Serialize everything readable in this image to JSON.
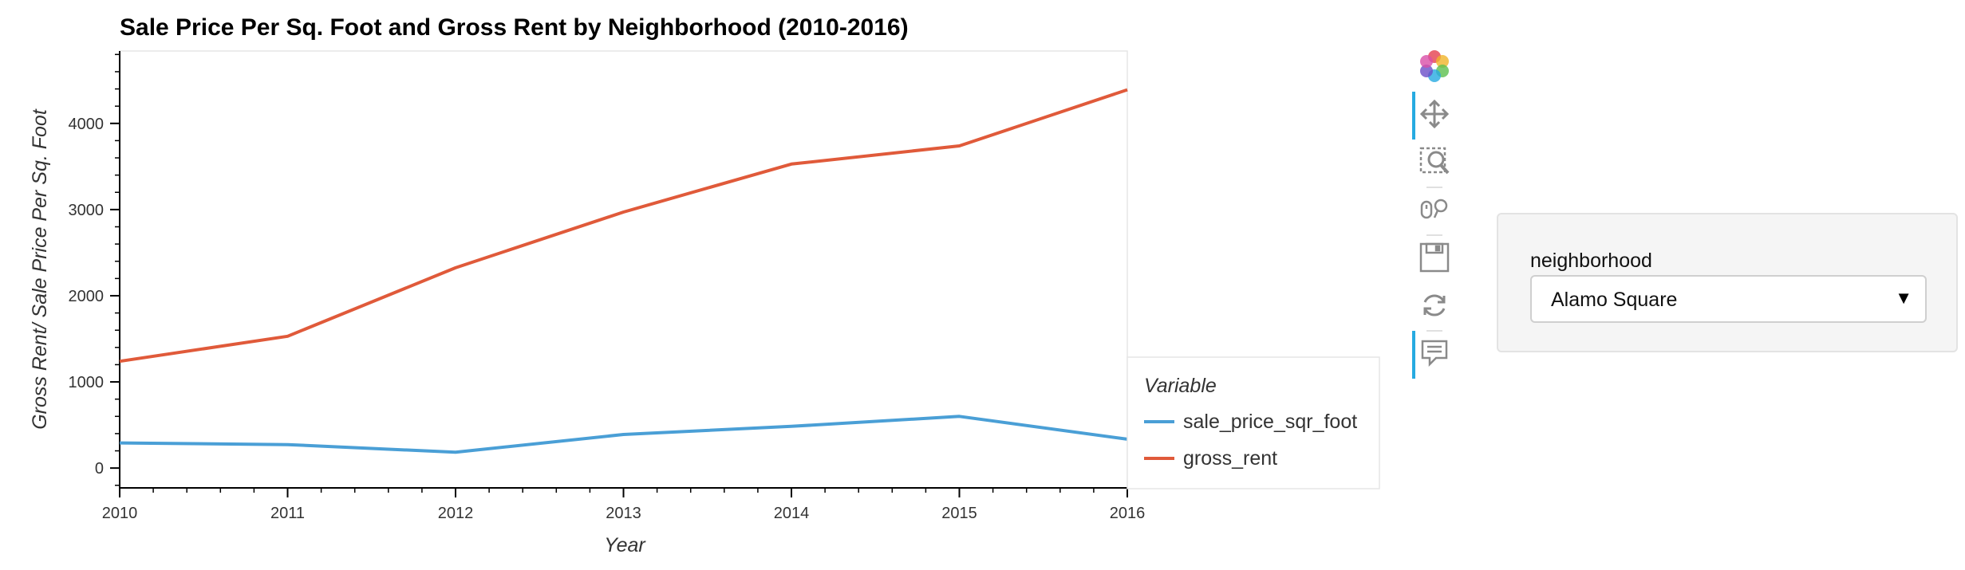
{
  "chart_data": {
    "type": "line",
    "title": "Sale Price Per Sq. Foot and Gross Rent by Neighborhood (2010-2016)",
    "xlabel": "Year",
    "ylabel": "Gross Rent/ Sale Price Per Sq. Foot",
    "x": [
      2010,
      2011,
      2012,
      2013,
      2014,
      2015,
      2016
    ],
    "xticks": [
      "2010",
      "2011",
      "2012",
      "2013",
      "2014",
      "2015",
      "2016"
    ],
    "yticks": [
      0,
      1000,
      2000,
      3000,
      4000
    ],
    "xlim": [
      2010,
      2016
    ],
    "ylim": [
      -230,
      4840
    ],
    "grid": false,
    "legend": {
      "title": "Variable",
      "placement": "right"
    },
    "series": [
      {
        "name": "sale_price_sqr_foot",
        "color": "#4a9fd6",
        "values": [
          292,
          272,
          184,
          390,
          484,
          600,
          335
        ]
      },
      {
        "name": "gross_rent",
        "color": "#e05a3a",
        "values": [
          1239,
          1530,
          2324,
          2971,
          3528,
          3739,
          4390
        ]
      }
    ]
  },
  "toolbar": {
    "tools": [
      {
        "name": "bokeh-logo-icon",
        "active": false
      },
      {
        "name": "pan-icon",
        "active": true
      },
      {
        "name": "box-zoom-icon",
        "active": false
      },
      {
        "name": "wheel-zoom-icon",
        "active": false
      },
      {
        "name": "save-icon",
        "active": false
      },
      {
        "name": "reset-icon",
        "active": false
      },
      {
        "name": "hover-icon",
        "active": true
      }
    ]
  },
  "widget": {
    "label": "neighborhood",
    "selected": "Alamo Square"
  }
}
